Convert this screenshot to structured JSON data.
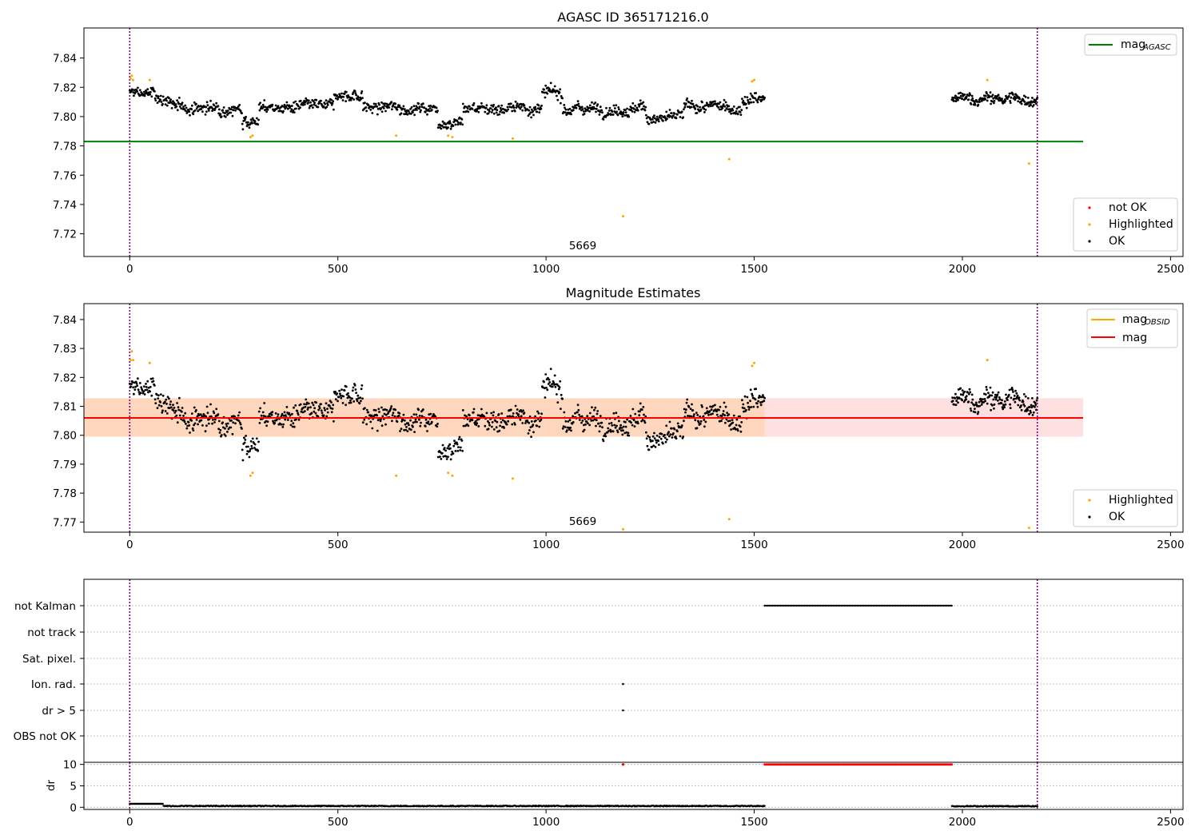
{
  "chart_data": [
    {
      "type": "scatter",
      "title": "AGASC ID 365171216.0",
      "xlim": [
        -110,
        2530
      ],
      "ylim": [
        7.7045,
        7.8605
      ],
      "xticks": [
        0,
        500,
        1000,
        1500,
        2000,
        2500
      ],
      "yticks": [
        7.72,
        7.74,
        7.76,
        7.78,
        7.8,
        7.82,
        7.84
      ],
      "ytick_labels": [
        "7.72",
        "7.74",
        "7.76",
        "7.78",
        "7.80",
        "7.82",
        "7.84"
      ],
      "obsid_label": {
        "text": "5669",
        "x": 1090
      },
      "vlines": [
        0,
        2180
      ],
      "mag_agasc": {
        "value": 7.783,
        "x_range": [
          -110,
          2290
        ],
        "color": "#008000"
      },
      "legend_lines": [
        {
          "label": "mag",
          "sub": "AGASC",
          "color": "#008000"
        }
      ],
      "legend_points": [
        {
          "label": "not OK",
          "color": "#ff0000"
        },
        {
          "label": "Highlighted",
          "color": "#ffa500"
        },
        {
          "label": "OK",
          "color": "#000000"
        }
      ],
      "series": {
        "ok_segments": [
          {
            "x0": 0,
            "x1": 1525,
            "n": 1100
          },
          {
            "x0": 1975,
            "x1": 2180,
            "n": 170
          }
        ],
        "highlighted_points": [
          [
            2,
            7.826
          ],
          [
            5,
            7.828
          ],
          [
            8,
            7.825
          ],
          [
            48,
            7.825
          ],
          [
            290,
            7.786
          ],
          [
            295,
            7.787
          ],
          [
            640,
            7.787
          ],
          [
            765,
            7.787
          ],
          [
            775,
            7.786
          ],
          [
            920,
            7.785
          ],
          [
            1185,
            7.732
          ],
          [
            1440,
            7.771
          ],
          [
            1495,
            7.824
          ],
          [
            1500,
            7.825
          ],
          [
            2060,
            7.825
          ],
          [
            2160,
            7.768
          ]
        ]
      }
    },
    {
      "type": "scatter",
      "title": "Magnitude Estimates",
      "xlim": [
        -110,
        2530
      ],
      "ylim": [
        7.7665,
        7.8455
      ],
      "xticks": [
        0,
        500,
        1000,
        1500,
        2000,
        2500
      ],
      "yticks": [
        7.77,
        7.78,
        7.79,
        7.8,
        7.81,
        7.82,
        7.83,
        7.84
      ],
      "ytick_labels": [
        "7.77",
        "7.78",
        "7.79",
        "7.80",
        "7.81",
        "7.82",
        "7.83",
        "7.84"
      ],
      "obsid_label": {
        "text": "5669",
        "x": 1090
      },
      "vlines": [
        0,
        2180
      ],
      "mag": {
        "value": 7.806,
        "band": [
          7.7995,
          7.8128
        ],
        "x_range": [
          -110,
          2290
        ],
        "color": "#ff0000"
      },
      "mag_obsid": {
        "value": 7.806,
        "band": [
          7.7995,
          7.8128
        ],
        "x_range": [
          -110,
          1525
        ],
        "color": "#ffa500"
      },
      "legend_lines": [
        {
          "label": "mag",
          "sub": "OBSID",
          "color": "#ffa500"
        },
        {
          "label": "mag",
          "sub": "",
          "color": "#ff0000"
        }
      ],
      "legend_points": [
        {
          "label": "Highlighted",
          "color": "#ffa500"
        },
        {
          "label": "OK",
          "color": "#000000"
        }
      ],
      "series": {
        "ok_segments": [
          {
            "x0": 0,
            "x1": 1525,
            "n": 1100
          },
          {
            "x0": 1975,
            "x1": 2180,
            "n": 170
          }
        ],
        "highlighted_points": [
          [
            2,
            7.826
          ],
          [
            5,
            7.829
          ],
          [
            8,
            7.826
          ],
          [
            48,
            7.825
          ],
          [
            290,
            7.786
          ],
          [
            295,
            7.787
          ],
          [
            640,
            7.786
          ],
          [
            765,
            7.787
          ],
          [
            775,
            7.786
          ],
          [
            920,
            7.785
          ],
          [
            1185,
            7.7675
          ],
          [
            1440,
            7.771
          ],
          [
            1495,
            7.824
          ],
          [
            1500,
            7.825
          ],
          [
            2060,
            7.826
          ],
          [
            2160,
            7.768
          ]
        ]
      }
    },
    {
      "type": "scatter",
      "title": "",
      "xlim": [
        -110,
        2530
      ],
      "xticks": [
        0,
        500,
        1000,
        1500,
        2000,
        2500
      ],
      "vlines": [
        0,
        2180
      ],
      "flag_rows": [
        "not Kalman",
        "not track",
        "Sat. pixel.",
        "Ion. rad.",
        "dr > 5",
        "OBS not OK"
      ],
      "flags": {
        "not Kalman": {
          "ranges": [
            [
              1525,
              1975
            ]
          ]
        },
        "Ion. rad.": {
          "points": [
            1185
          ]
        },
        "dr > 5": {
          "points": [
            1185
          ]
        }
      }
    },
    {
      "type": "scatter",
      "title": "",
      "ylabel": "dr",
      "xlim": [
        -110,
        2530
      ],
      "ylim": [
        -0.5,
        10.5
      ],
      "yticks": [
        0,
        5,
        10
      ],
      "ytick_labels": [
        "0",
        "5",
        "10"
      ],
      "xticks": [
        0,
        500,
        1000,
        1500,
        2000,
        2500
      ],
      "xtick_labels": [
        "0",
        "500",
        "1000",
        "1500",
        "2000",
        "2500"
      ],
      "vlines": [
        0,
        2180
      ],
      "series": {
        "ok_segments": [
          {
            "x0": 0,
            "x1": 1525,
            "value": 0.3
          },
          {
            "x0": 1975,
            "x1": 2180,
            "value": 0.25
          }
        ],
        "saturated_range": [
          1525,
          1975
        ],
        "saturated_value": 10,
        "red_points": [
          [
            1185,
            10
          ]
        ]
      }
    }
  ]
}
